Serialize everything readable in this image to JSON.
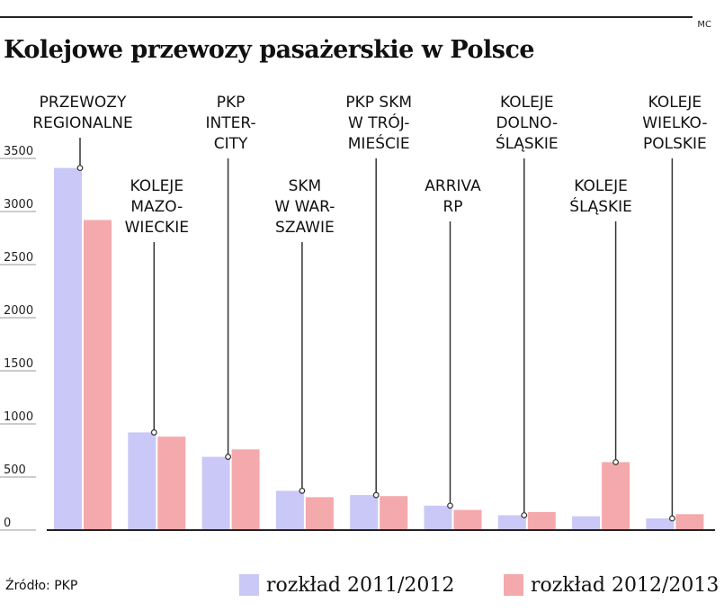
{
  "credit": "MC",
  "title": "Kolejowe przewozy pasażerskie w Polsce",
  "source": "Źródło: PKP",
  "colors": {
    "s2011": "#c9c8f7",
    "s2012": "#f4a9ad",
    "axis": "#222222",
    "grid": "#cccccc",
    "leader": "#333333"
  },
  "chart_data": {
    "type": "bar",
    "title": "Kolejowe przewozy pasażerskie w Polsce",
    "ylim": [
      0,
      3500
    ],
    "yticks": [
      "0",
      "500",
      "1000",
      "1500",
      "2000",
      "2500",
      "3000",
      "3500"
    ],
    "grid": false,
    "legend_position": "bottom",
    "categories": [
      [
        "PRZEWOZY",
        "REGIONALNE"
      ],
      [
        "KOLEJE",
        "MAZO-",
        "WIECKIE"
      ],
      [
        "PKP",
        "INTER-",
        "CITY"
      ],
      [
        "SKM",
        "W WAR-",
        "SZAWIE"
      ],
      [
        "PKP SKM",
        "W TRÓJ-",
        "MIEŚCIE"
      ],
      [
        "ARRIVA",
        "RP"
      ],
      [
        "KOLEJE",
        "DOLNO-",
        "ŚLĄSKIE"
      ],
      [
        "KOLEJE",
        "ŚLĄSKIE"
      ],
      [
        "KOLEJE",
        "WIELKO-",
        "POLSKIE"
      ]
    ],
    "series": [
      {
        "name": "rozkład 2011/2012",
        "values": [
          3410,
          920,
          690,
          370,
          330,
          230,
          140,
          130,
          110
        ]
      },
      {
        "name": "rozkład 2012/2013",
        "values": [
          2920,
          880,
          760,
          310,
          320,
          190,
          170,
          640,
          150
        ]
      }
    ]
  }
}
